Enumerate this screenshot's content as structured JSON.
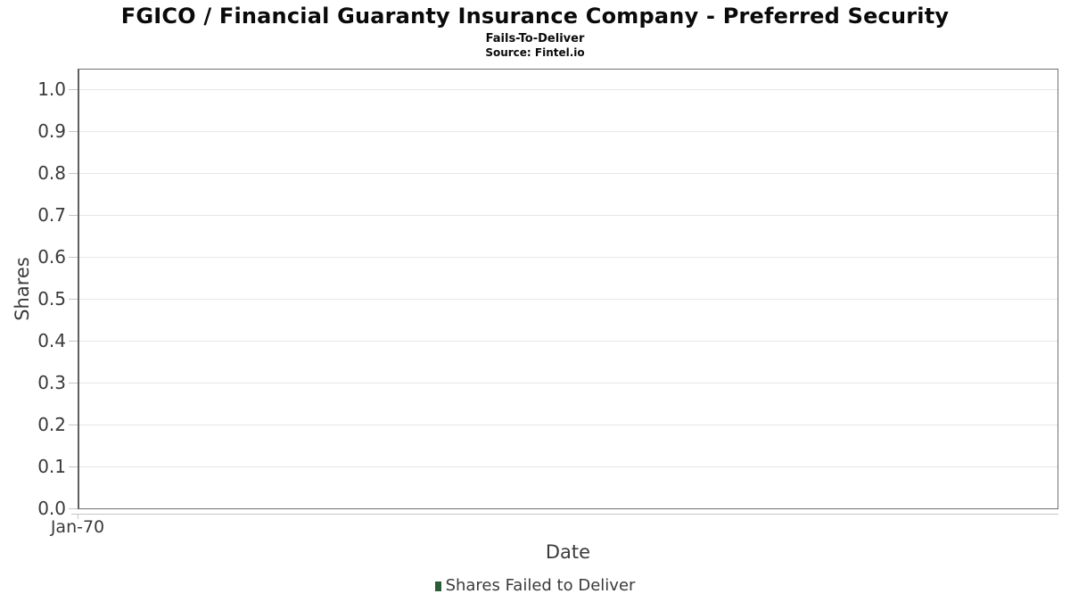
{
  "title": "FGICO / Financial Guaranty Insurance Company - Preferred Security",
  "subtitle": "Fails-To-Deliver",
  "source_line": "Source: Fintel.io",
  "chart_data": {
    "type": "line",
    "title": "FGICO / Financial Guaranty Insurance Company - Preferred Security",
    "subtitle": "Fails-To-Deliver",
    "source": "Fintel.io",
    "xlabel": "Date",
    "ylabel": "Shares",
    "ylim": [
      0,
      1.047
    ],
    "y_ticks": [
      0.0,
      0.1,
      0.2,
      0.3,
      0.4,
      0.5,
      0.6,
      0.7,
      0.8,
      0.9,
      1.0
    ],
    "y_tick_decimals": 1,
    "x_ticks": [
      {
        "label": "Jan-70",
        "position": 0
      }
    ],
    "grid": true,
    "legend_position": "bottom",
    "series": [
      {
        "name": "Shares Failed to Deliver",
        "color": "#2b5d38",
        "x": [],
        "values": []
      }
    ]
  },
  "legend": {
    "entries": [
      {
        "label": "Shares Failed to Deliver",
        "color": "#2b5d38"
      }
    ]
  },
  "colors": {
    "grid": "#e6e6e6",
    "plot_border": "#707070",
    "axis_line": "#c6c6c6",
    "tick_text": "#3a3a3a",
    "title_text": "#0a0a0a"
  }
}
